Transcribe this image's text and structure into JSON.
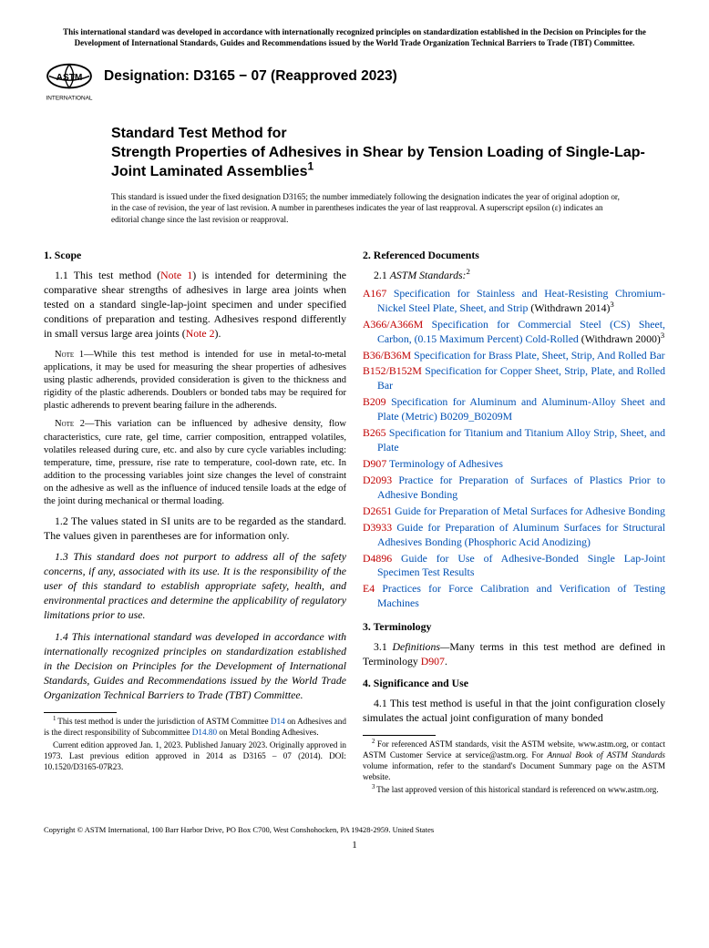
{
  "top_notice": "This international standard was developed in accordance with internationally recognized principles on standardization established in the Decision on Principles for the Development of International Standards, Guides and Recommendations issued by the World Trade Organization Technical Barriers to Trade (TBT) Committee.",
  "logo_text": "INTERNATIONAL",
  "designation": "Designation: D3165 − 07 (Reapproved 2023)",
  "title_line1": "Standard Test Method for",
  "title_line2": "Strength Properties of Adhesives in Shear by Tension Loading of Single-Lap-Joint Laminated Assemblies",
  "title_sup": "1",
  "issuance": "This standard is issued under the fixed designation D3165; the number immediately following the designation indicates the year of original adoption or, in the case of revision, the year of last revision. A number in parentheses indicates the year of last reapproval. A superscript epsilon (ε) indicates an editorial change since the last revision or reapproval.",
  "left": {
    "scope_head": "1. Scope",
    "p11a": "1.1 This test method (",
    "p11_note1": "Note 1",
    "p11b": ") is intended for determining the comparative shear strengths of adhesives in large area joints when tested on a standard single-lap-joint specimen and under specified conditions of preparation and testing. Adhesives respond differently in small versus large area joints (",
    "p11_note2": "Note 2",
    "p11c": ").",
    "note1_lead": "Note 1—",
    "note1": "While this test method is intended for use in metal-to-metal applications, it may be used for measuring the shear properties of adhesives using plastic adherends, provided consideration is given to the thickness and rigidity of the plastic adherends. Doublers or bonded tabs may be required for plastic adherends to prevent bearing failure in the adherends.",
    "note2_lead": "Note 2—",
    "note2": "This variation can be influenced by adhesive density, flow characteristics, cure rate, gel time, carrier composition, entrapped volatiles, volatiles released during cure, etc. and also by cure cycle variables including: temperature, time, pressure, rise rate to temperature, cool-down rate, etc. In addition to the processing variables joint size changes the level of constraint on the adhesive as well as the influence of induced tensile loads at the edge of the joint during mechanical or thermal loading.",
    "p12": "1.2 The values stated in SI units are to be regarded as the standard. The values given in parentheses are for information only.",
    "p13": "1.3 This standard does not purport to address all of the safety concerns, if any, associated with its use. It is the responsibility of the user of this standard to establish appropriate safety, health, and environmental practices and determine the applicability of regulatory limitations prior to use.",
    "p14": "1.4 This international standard was developed in accordance with internationally recognized principles on standardization established in the Decision on Principles for the Development of International Standards, Guides and Recommendations issued by the World Trade Organization Technical Barriers to Trade (TBT) Committee.",
    "fn1a": "This test method is under the jurisdiction of ASTM Committee ",
    "fn1_d14": "D14",
    "fn1b": " on Adhesives and is the direct responsibility of Subcommittee ",
    "fn1_d1480": "D14.80",
    "fn1c": " on Metal Bonding Adhesives.",
    "fn1d": "Current edition approved Jan. 1, 2023. Published January 2023. Originally approved in 1973. Last previous edition approved in 2014 as D3165 – 07 (2014). DOI: 10.1520/D3165-07R23."
  },
  "right": {
    "ref_head": "2. Referenced Documents",
    "ref_sub_num": "2.1 ",
    "ref_sub": "ASTM Standards:",
    "ref_sup": "2",
    "refs": [
      {
        "code": "A167",
        "desc": "Specification for Stainless and Heat-Resisting Chromium-Nickel Steel Plate, Sheet, and Strip",
        "tail": " (Withdrawn 2014)",
        "sup": "3"
      },
      {
        "code": "A366/A366M",
        "desc": "Specification for Commercial Steel (CS) Sheet, Carbon, (0.15 Maximum Percent) Cold-Rolled",
        "tail": " (Withdrawn 2000)",
        "sup": "3"
      },
      {
        "code": "B36/B36M",
        "desc": "Specification for Brass Plate, Sheet, Strip, And Rolled Bar",
        "tail": "",
        "sup": ""
      },
      {
        "code": "B152/B152M",
        "desc": "Specification for Copper Sheet, Strip, Plate, and Rolled Bar",
        "tail": "",
        "sup": ""
      },
      {
        "code": "B209",
        "desc": "Specification for Aluminum and Aluminum-Alloy Sheet and Plate (Metric) B0209_B0209M",
        "tail": "",
        "sup": ""
      },
      {
        "code": "B265",
        "desc": "Specification for Titanium and Titanium Alloy Strip, Sheet, and Plate",
        "tail": "",
        "sup": ""
      },
      {
        "code": "D907",
        "desc": "Terminology of Adhesives",
        "tail": "",
        "sup": ""
      },
      {
        "code": "D2093",
        "desc": "Practice for Preparation of Surfaces of Plastics Prior to Adhesive Bonding",
        "tail": "",
        "sup": ""
      },
      {
        "code": "D2651",
        "desc": "Guide for Preparation of Metal Surfaces for Adhesive Bonding",
        "tail": "",
        "sup": ""
      },
      {
        "code": "D3933",
        "desc": "Guide for Preparation of Aluminum Surfaces for Structural Adhesives Bonding (Phosphoric Acid Anodizing)",
        "tail": "",
        "sup": ""
      },
      {
        "code": "D4896",
        "desc": "Guide for Use of Adhesive-Bonded Single Lap-Joint Specimen Test Results",
        "tail": "",
        "sup": ""
      },
      {
        "code": "E4",
        "desc": "Practices for Force Calibration and Verification of Testing Machines",
        "tail": "",
        "sup": ""
      }
    ],
    "term_head": "3. Terminology",
    "p31a": "3.1 ",
    "p31_def": "Definitions—",
    "p31b": "Many terms in this test method are defined in Terminology ",
    "p31_d907": "D907",
    "p31c": ".",
    "sig_head": "4. Significance and Use",
    "p41": "4.1 This test method is useful in that the joint configuration closely simulates the actual joint configuration of many bonded",
    "fn2a": "For referenced ASTM standards, visit the ASTM website, www.astm.org, or contact ASTM Customer Service at service@astm.org. For ",
    "fn2_ital": "Annual Book of ASTM Standards",
    "fn2b": " volume information, refer to the standard's Document Summary page on the ASTM website.",
    "fn3": "The last approved version of this historical standard is referenced on www.astm.org."
  },
  "copyright": "Copyright © ASTM International, 100 Barr Harbor Drive, PO Box C700, West Conshohocken, PA 19428-2959. United States",
  "pagenum": "1"
}
